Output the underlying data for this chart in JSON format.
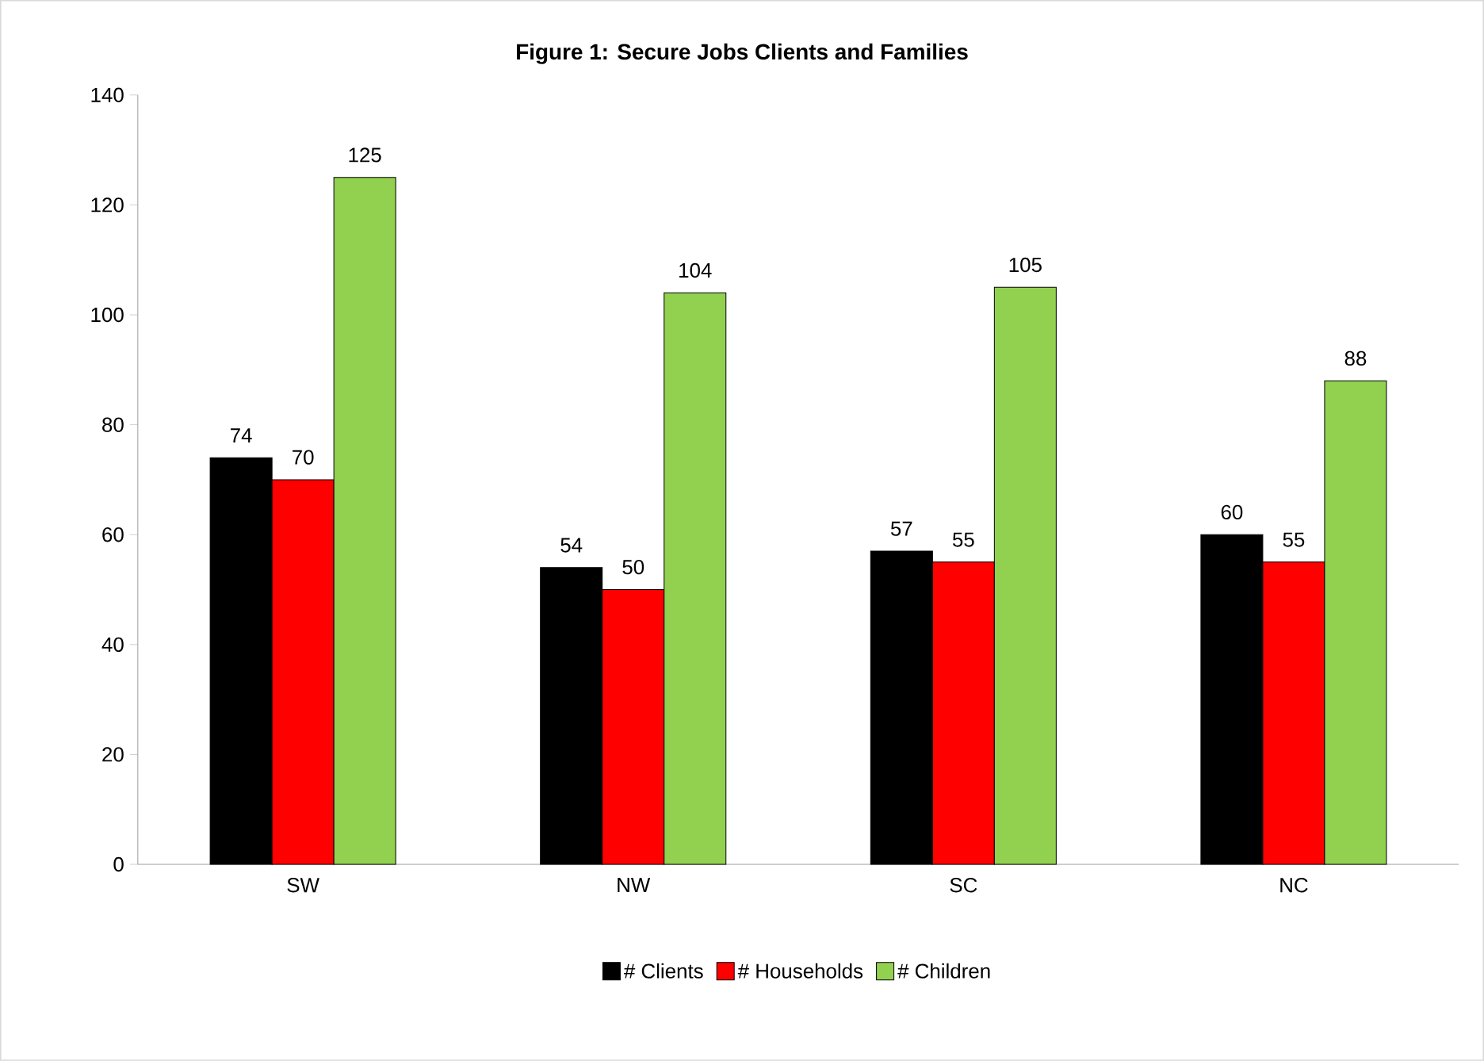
{
  "chart_data": {
    "type": "bar",
    "title": "Figure 1:  Secure Jobs Clients and Families",
    "categories": [
      "SW",
      "NW",
      "SC",
      "NC"
    ],
    "series": [
      {
        "name": "# Clients",
        "color": "#000000",
        "values": [
          74,
          54,
          57,
          60
        ]
      },
      {
        "name": "# Households",
        "color": "#ff0000",
        "values": [
          70,
          50,
          55,
          55
        ]
      },
      {
        "name": "# Children",
        "color": "#92d050",
        "values": [
          125,
          104,
          105,
          88
        ]
      }
    ],
    "ylim": [
      0,
      140
    ],
    "yticks": [
      0,
      20,
      40,
      60,
      80,
      100,
      120,
      140
    ],
    "data_labels": true,
    "legend": "bottom",
    "grid": false
  }
}
